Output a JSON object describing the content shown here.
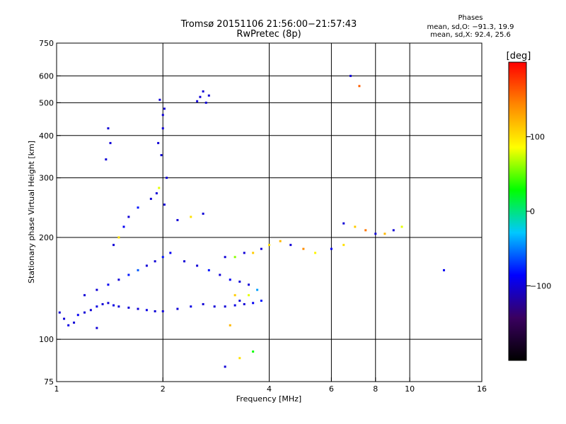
{
  "header": {
    "title": "Tromsø 20151106 21:56:00−21:57:43",
    "subtitle": "RwPretec (8p)"
  },
  "phases_note": {
    "heading": "Phases",
    "line_o": "mean, sd,O: −91.3, 19.9",
    "line_x": "mean, sd,X:  92.4, 25.6"
  },
  "chart_data": {
    "type": "scatter",
    "title": "Tromsø 20151106 21:56:00−21:57:43",
    "subtitle": "RwPretec (8p)",
    "xlabel": "Frequency [MHz]",
    "ylabel": "Stationary phase Virtual Height [km]",
    "x_scale": "log",
    "y_scale": "log",
    "xlim": [
      1,
      16
    ],
    "ylim": [
      75,
      750
    ],
    "x_ticks": [
      1,
      2,
      4,
      6,
      8,
      10,
      16
    ],
    "x_tick_labels": [
      "1",
      "2",
      "4",
      "6",
      "8",
      "10",
      "16"
    ],
    "x_gridlines": [
      2,
      4,
      6,
      8,
      10
    ],
    "y_ticks": [
      75,
      100,
      200,
      300,
      400,
      500,
      600,
      750
    ],
    "y_tick_labels": [
      "75",
      "100",
      "200",
      "300",
      "400",
      "500",
      "600",
      "750"
    ],
    "y_gridlines": [
      100,
      200,
      300,
      400,
      500,
      600
    ],
    "grid": true,
    "colorbar": {
      "label": "[deg]",
      "range": [
        -200,
        200
      ],
      "ticks": [
        100,
        0,
        -100
      ],
      "tick_labels": [
        "100",
        "0",
        "−100"
      ],
      "colormap": [
        "#000000",
        "#3a0060",
        "#0000ff",
        "#00c8ff",
        "#00ff00",
        "#ffff00",
        "#ff8800",
        "#ff0000"
      ]
    },
    "series": [
      {
        "x": [
          1.02,
          1.05,
          1.08,
          1.12,
          1.15,
          1.2,
          1.25,
          1.3,
          1.35,
          1.4,
          1.45,
          1.5,
          1.6,
          1.7,
          1.8,
          1.9,
          2.0,
          2.2,
          2.4,
          2.6,
          2.8,
          3.0,
          3.2,
          3.4,
          3.6,
          3.8,
          1.2,
          1.3,
          1.4,
          1.5,
          1.6,
          1.7,
          1.8,
          1.9,
          2.0,
          2.1,
          2.3,
          2.5,
          2.7,
          2.9,
          3.1,
          3.3,
          3.5,
          1.45,
          1.5,
          1.55,
          1.6,
          1.7,
          1.85,
          1.95,
          2.05,
          1.98,
          2.0,
          2.02,
          1.96,
          2.0,
          1.94,
          2.02,
          1.92,
          2.5,
          2.55,
          2.6,
          2.7,
          2.65,
          1.4,
          1.42,
          1.38,
          3.0,
          3.2,
          3.4,
          3.6,
          3.8,
          4.0,
          4.3,
          4.6,
          5.0,
          5.4,
          6.0,
          6.5,
          3.3,
          3.5,
          3.7,
          2.2,
          2.4,
          2.6,
          6.5,
          7.0,
          7.5,
          8.0,
          8.5,
          9.0,
          9.5,
          6.8,
          7.2,
          12.5,
          3.0,
          3.1,
          3.3,
          3.6,
          1.3,
          3.2
        ],
        "y": [
          120,
          115,
          110,
          112,
          118,
          120,
          122,
          125,
          127,
          128,
          126,
          125,
          124,
          123,
          122,
          121,
          121,
          123,
          125,
          127,
          125,
          125,
          126,
          127,
          128,
          130,
          135,
          140,
          145,
          150,
          155,
          160,
          165,
          170,
          175,
          180,
          170,
          165,
          160,
          155,
          150,
          148,
          145,
          190,
          200,
          215,
          230,
          245,
          260,
          280,
          300,
          350,
          420,
          480,
          510,
          460,
          380,
          250,
          270,
          505,
          520,
          540,
          525,
          500,
          420,
          380,
          340,
          175,
          175,
          180,
          180,
          185,
          190,
          195,
          190,
          185,
          180,
          185,
          190,
          130,
          135,
          140,
          225,
          230,
          235,
          220,
          215,
          210,
          205,
          205,
          210,
          215,
          600,
          560,
          160,
          83,
          110,
          88,
          92,
          108,
          135
        ],
        "phase": [
          -100,
          -100,
          -95,
          -100,
          -90,
          -100,
          -100,
          -95,
          -100,
          -100,
          -95,
          -100,
          -100,
          -100,
          -95,
          -100,
          -100,
          -100,
          -95,
          -100,
          -100,
          -100,
          -95,
          -100,
          -90,
          -80,
          -100,
          -100,
          -90,
          -100,
          -80,
          -60,
          -100,
          -100,
          -80,
          -90,
          -100,
          -100,
          -80,
          -100,
          -90,
          -100,
          -100,
          -100,
          100,
          -90,
          -100,
          -80,
          -100,
          80,
          -100,
          -100,
          -100,
          -100,
          -100,
          -100,
          -100,
          -100,
          -100,
          -100,
          -100,
          -100,
          -100,
          -100,
          -100,
          -100,
          -100,
          -100,
          60,
          -100,
          110,
          -100,
          100,
          120,
          -100,
          140,
          90,
          -90,
          100,
          -100,
          80,
          -40,
          -100,
          100,
          -100,
          -100,
          110,
          150,
          -100,
          120,
          -100,
          80,
          -100,
          160,
          -90,
          -100,
          120,
          100,
          30,
          -100,
          110
        ]
      }
    ]
  }
}
